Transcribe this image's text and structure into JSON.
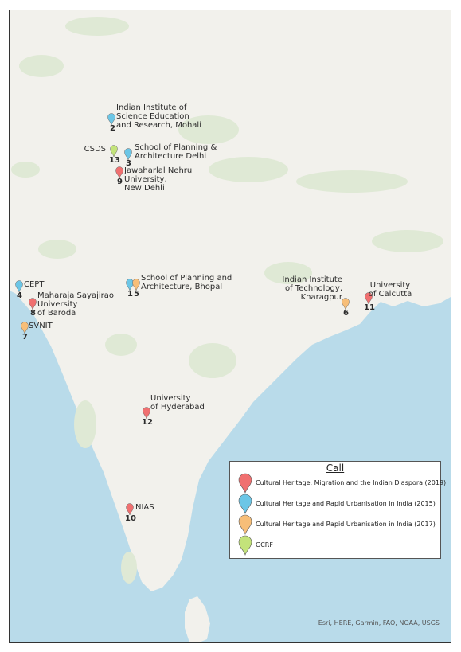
{
  "map": {
    "attribution": "Esri, HERE, Garmin, FAO, NOAA, USGS",
    "colors": {
      "land": "#f2f1ec",
      "sea": "#b9dbea",
      "green": "#dfe9d5"
    }
  },
  "legend": {
    "title": "Call",
    "items": [
      {
        "label": "Cultural Heritage, Migration and the Indian Diaspora (2019)",
        "color": "#f07070"
      },
      {
        "label": "Cultural Heritage and Rapid Urbanisation in India (2015)",
        "color": "#6cc6e6"
      },
      {
        "label": "Cultural Heritage and Rapid Urbanisation in India (2017)",
        "color": "#f7be78"
      },
      {
        "label": "GCRF",
        "color": "#c3e37a"
      }
    ]
  },
  "markers": [
    {
      "number": "2",
      "lines": [
        "Indian Institute of",
        "Science Education",
        "and Research, Mohali"
      ],
      "color": "#6cc6e6"
    },
    {
      "number": "13",
      "lines": [
        "CSDS"
      ],
      "color": "#c3e37a"
    },
    {
      "number": "3",
      "lines": [
        "School of Planning &",
        "Architecture Delhi"
      ],
      "color": "#6cc6e6"
    },
    {
      "number": "9",
      "lines": [
        "Jawaharlal Nehru",
        "University,",
        "New Dehli"
      ],
      "color": "#f07070"
    },
    {
      "number": "4",
      "lines": [
        "CEPT"
      ],
      "color": "#6cc6e6"
    },
    {
      "number": "8",
      "lines": [
        "Maharaja Sayajirao",
        "University",
        "of Baroda"
      ],
      "color": "#f07070"
    },
    {
      "number": "7",
      "lines": [
        "SVNIT"
      ],
      "color": "#f7be78"
    },
    {
      "number": "1",
      "lines": [],
      "color": "#6cc6e6"
    },
    {
      "number": "5",
      "lines": [
        "School of Planning and",
        "Architecture, Bhopal"
      ],
      "color": "#f7be78"
    },
    {
      "number": "6",
      "lines": [
        "Indian Institute",
        "of Technology,",
        "Kharagpur"
      ],
      "color": "#f7be78"
    },
    {
      "number": "11",
      "lines": [
        "University",
        "of Calcutta"
      ],
      "color": "#f07070"
    },
    {
      "number": "12",
      "lines": [
        "University",
        "of Hyderabad"
      ],
      "color": "#f07070"
    },
    {
      "number": "10",
      "lines": [
        "NIAS"
      ],
      "color": "#f07070"
    }
  ]
}
